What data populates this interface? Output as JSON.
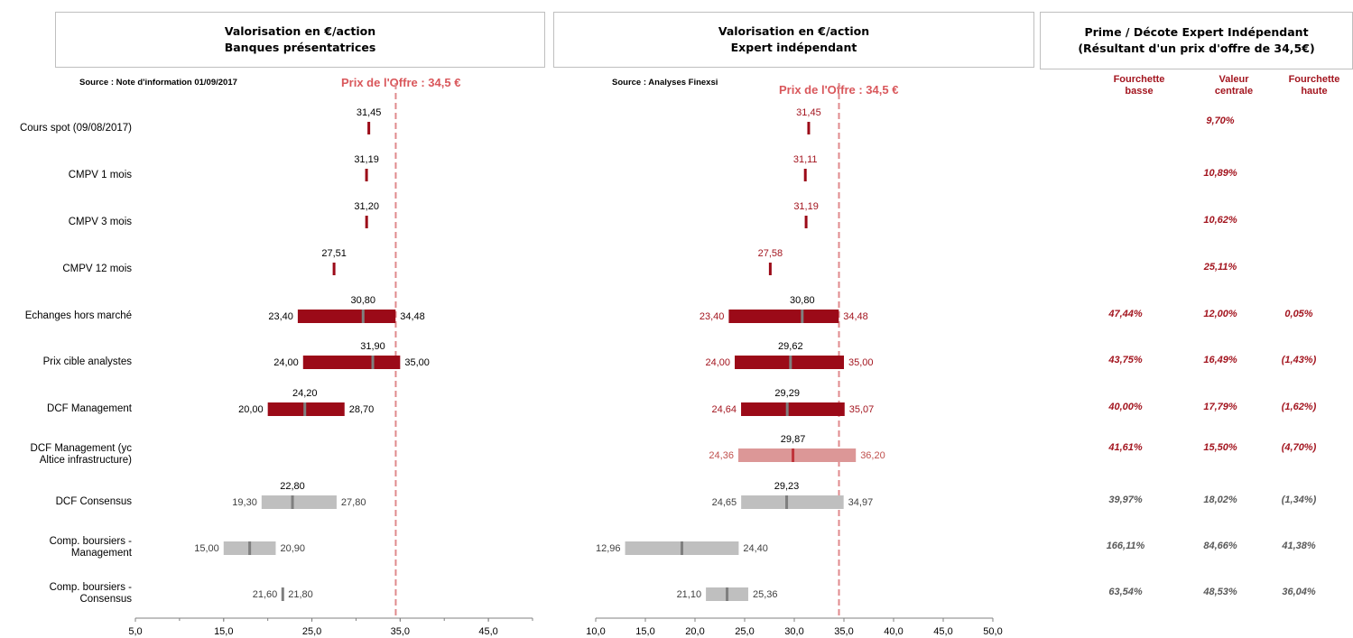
{
  "panel1": {
    "title1": "Valorisation en €/action",
    "title2": "Banques présentatrices",
    "source": "Source : Note d'information 01/09/2017",
    "offer_label": "Prix de l'Offre : 34,5 €"
  },
  "panel2": {
    "title1": "Valorisation en €/action",
    "title2": "Expert indépendant",
    "source": "Source : Analyses Finexsi",
    "offer_label": "Prix de l'Offre : 34,5 €"
  },
  "panel3": {
    "title1": "Prime / Décote Expert Indépendant",
    "title2": "(Résultant d'un prix d'offre de 34,5€)",
    "col_low": [
      "Fourchette",
      "basse"
    ],
    "col_mid": [
      "Valeur",
      "centrale"
    ],
    "col_high": [
      "Fourchette",
      "haute"
    ]
  },
  "rows": [
    {
      "label": [
        "Cours spot (09/08/2017)"
      ]
    },
    {
      "label": [
        "CMPV 1 mois"
      ]
    },
    {
      "label": [
        "CMPV 3 mois"
      ]
    },
    {
      "label": [
        "CMPV 12 mois"
      ]
    },
    {
      "label": [
        "Echanges hors marché"
      ]
    },
    {
      "label": [
        "Prix cible analystes"
      ]
    },
    {
      "label": [
        "DCF Management"
      ]
    },
    {
      "label": [
        "DCF Management (yc",
        "Altice infrastructure)"
      ]
    },
    {
      "label": [
        "DCF Consensus"
      ]
    },
    {
      "label": [
        "Comp. boursiers -",
        "Management"
      ]
    },
    {
      "label": [
        "Comp. boursiers -",
        "Consensus"
      ]
    }
  ],
  "primes": [
    {
      "low": "",
      "mid": "9,70%",
      "high": "",
      "style": "red"
    },
    {
      "low": "",
      "mid": "10,89%",
      "high": "",
      "style": "red"
    },
    {
      "low": "",
      "mid": "10,62%",
      "high": "",
      "style": "red"
    },
    {
      "low": "",
      "mid": "25,11%",
      "high": "",
      "style": "red"
    },
    {
      "low": "47,44%",
      "mid": "12,00%",
      "high": "0,05%",
      "style": "red"
    },
    {
      "low": "43,75%",
      "mid": "16,49%",
      "high": "(1,43%)",
      "style": "red"
    },
    {
      "low": "40,00%",
      "mid": "17,79%",
      "high": "(1,62%)",
      "style": "red"
    },
    {
      "low": "41,61%",
      "mid": "15,50%",
      "high": "(4,70%)",
      "style": "red"
    },
    {
      "low": "39,97%",
      "mid": "18,02%",
      "high": "(1,34%)",
      "style": "grey"
    },
    {
      "low": "166,11%",
      "mid": "84,66%",
      "high": "41,38%",
      "style": "grey"
    },
    {
      "low": "63,54%",
      "mid": "48,53%",
      "high": "36,04%",
      "style": "grey"
    }
  ],
  "colors": {
    "dark_red": "#9b0a18",
    "light_red": "#dc9797",
    "grey": "#bfbfbf",
    "grey_mid": "#7f7f7f",
    "offer_line": "#e08a8c",
    "label_red": "#a3151f"
  },
  "chart_data": [
    {
      "type": "bar",
      "subtype": "floating-range",
      "title": "Valorisation en €/action - Banques présentatrices",
      "offer_price": 34.5,
      "xlim": [
        5,
        50
      ],
      "xticks": [
        5,
        15,
        25,
        35,
        45
      ],
      "xtick_labels": [
        "5,0",
        "15,0",
        "25,0",
        "35,0",
        "45,0"
      ],
      "items": [
        {
          "kind": "point",
          "value": 31.45,
          "label": "31,45",
          "color": "dark"
        },
        {
          "kind": "point",
          "value": 31.19,
          "label": "31,19",
          "color": "dark"
        },
        {
          "kind": "point",
          "value": 31.2,
          "label": "31,20",
          "color": "dark"
        },
        {
          "kind": "point",
          "value": 27.51,
          "label": "27,51",
          "color": "dark"
        },
        {
          "kind": "range",
          "low": 23.4,
          "high": 34.48,
          "mid": 30.8,
          "low_label": "23,40",
          "high_label": "34,48",
          "mid_label": "30,80",
          "color": "dark"
        },
        {
          "kind": "range",
          "low": 24.0,
          "high": 35.0,
          "mid": 31.9,
          "low_label": "24,00",
          "high_label": "35,00",
          "mid_label": "31,90",
          "color": "dark"
        },
        {
          "kind": "range",
          "low": 20.0,
          "high": 28.7,
          "mid": 24.2,
          "low_label": "20,00",
          "high_label": "28,70",
          "mid_label": "24,20",
          "color": "dark"
        },
        {
          "kind": "none"
        },
        {
          "kind": "range",
          "low": 19.3,
          "high": 27.8,
          "mid": 22.8,
          "low_label": "19,30",
          "high_label": "27,80",
          "mid_label": "22,80",
          "color": "grey"
        },
        {
          "kind": "range",
          "low": 15.0,
          "high": 20.9,
          "mid": 17.95,
          "low_label": "15,00",
          "high_label": "20,90",
          "mid_label": "",
          "color": "grey"
        },
        {
          "kind": "range",
          "low": 21.6,
          "high": 21.8,
          "mid": 21.7,
          "low_label": "21,60",
          "high_label": "21,80",
          "mid_label": "",
          "color": "grey"
        }
      ]
    },
    {
      "type": "bar",
      "subtype": "floating-range",
      "title": "Valorisation en €/action - Expert indépendant",
      "offer_price": 34.5,
      "xlim": [
        10,
        50
      ],
      "xticks": [
        10,
        15,
        20,
        25,
        30,
        35,
        40,
        45,
        50
      ],
      "xtick_labels": [
        "10,0",
        "15,0",
        "20,0",
        "25,0",
        "30,0",
        "35,0",
        "40,0",
        "45,0",
        "50,0"
      ],
      "items": [
        {
          "kind": "point",
          "value": 31.45,
          "label": "31,45",
          "color": "dark"
        },
        {
          "kind": "point",
          "value": 31.11,
          "label": "31,11",
          "color": "dark"
        },
        {
          "kind": "point",
          "value": 31.19,
          "label": "31,19",
          "color": "dark"
        },
        {
          "kind": "point",
          "value": 27.58,
          "label": "27,58",
          "color": "dark"
        },
        {
          "kind": "range",
          "low": 23.4,
          "high": 34.48,
          "mid": 30.8,
          "low_label": "23,40",
          "high_label": "34,48",
          "mid_label": "30,80",
          "color": "dark"
        },
        {
          "kind": "range",
          "low": 24.0,
          "high": 35.0,
          "mid": 29.62,
          "low_label": "24,00",
          "high_label": "35,00",
          "mid_label": "29,62",
          "color": "dark"
        },
        {
          "kind": "range",
          "low": 24.64,
          "high": 35.07,
          "mid": 29.29,
          "low_label": "24,64",
          "high_label": "35,07",
          "mid_label": "29,29",
          "color": "dark"
        },
        {
          "kind": "range",
          "low": 24.36,
          "high": 36.2,
          "mid": 29.87,
          "low_label": "24,36",
          "high_label": "36,20",
          "mid_label": "29,87",
          "color": "light"
        },
        {
          "kind": "range",
          "low": 24.65,
          "high": 34.97,
          "mid": 29.23,
          "low_label": "24,65",
          "high_label": "34,97",
          "mid_label": "29,23",
          "color": "grey"
        },
        {
          "kind": "range",
          "low": 12.96,
          "high": 24.4,
          "mid": 18.68,
          "low_label": "12,96",
          "high_label": "24,40",
          "mid_label": "",
          "color": "grey"
        },
        {
          "kind": "range",
          "low": 21.1,
          "high": 25.36,
          "mid": 23.23,
          "low_label": "21,10",
          "high_label": "25,36",
          "mid_label": "",
          "color": "grey"
        }
      ]
    }
  ]
}
